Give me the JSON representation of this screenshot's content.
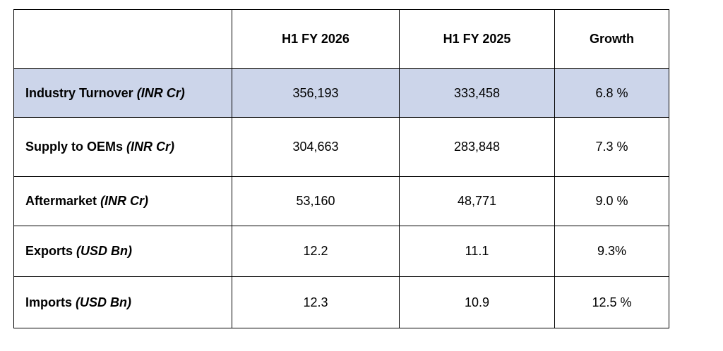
{
  "table": {
    "header": [
      "H1 FY 2026",
      "H1 FY 2025",
      "Growth"
    ],
    "rows": [
      {
        "name": "Industry Turnover",
        "unit": "(INR Cr)",
        "cells": [
          "356,193",
          "333,458",
          "6.8 %"
        ]
      },
      {
        "name": "Supply to OEMs",
        "unit": "(INR Cr)",
        "cells": [
          "304,663",
          "283,848",
          "7.3 %"
        ]
      },
      {
        "name": "Aftermarket",
        "unit": "(INR Cr)",
        "cells": [
          "53,160",
          "48,771",
          "9.0 %"
        ]
      },
      {
        "name": "Exports",
        "unit": "(USD Bn)",
        "cells": [
          "12.2",
          "11.1",
          "9.3%"
        ]
      },
      {
        "name": "Imports",
        "unit": "(USD Bn)",
        "cells": [
          "12.3",
          "10.9",
          "12.5 %"
        ]
      }
    ]
  }
}
